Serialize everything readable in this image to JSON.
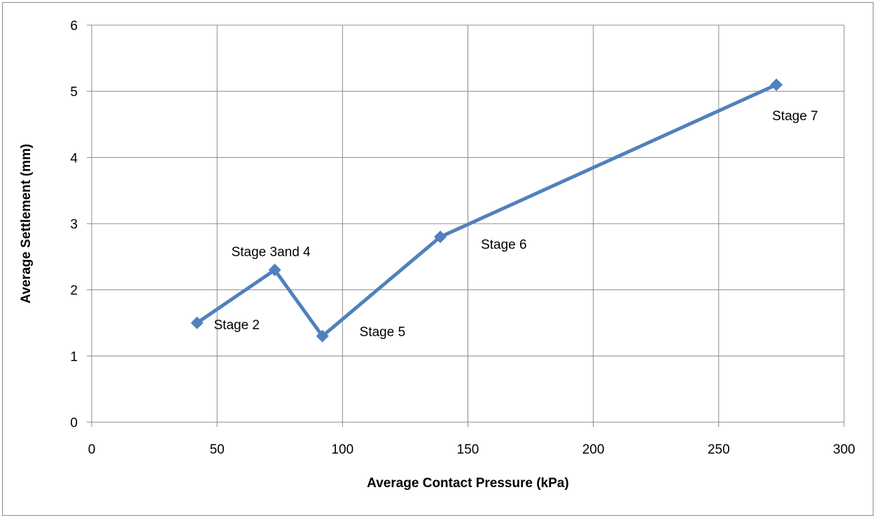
{
  "chart_data": {
    "type": "line",
    "title": "",
    "xlabel": "Average Contact Pressure (kPa)",
    "ylabel": "Average Settlement (mm)",
    "xlim": [
      0,
      300
    ],
    "ylim": [
      0,
      6
    ],
    "x_ticks": [
      "0",
      "50",
      "100",
      "150",
      "200",
      "250",
      "300"
    ],
    "y_ticks": [
      "0",
      "1",
      "2",
      "3",
      "4",
      "5",
      "6"
    ],
    "grid": true,
    "legend": "none",
    "series": [
      {
        "color": "#4F81BD",
        "marker": "diamond",
        "points": [
          {
            "x": 42,
            "y": 1.5,
            "label": "Stage 2"
          },
          {
            "x": 73,
            "y": 2.3,
            "label": "Stage 3and 4"
          },
          {
            "x": 92,
            "y": 1.3,
            "label": "Stage 5"
          },
          {
            "x": 139,
            "y": 2.8,
            "label": "Stage 6"
          },
          {
            "x": 273,
            "y": 5.1,
            "label": "Stage 7"
          }
        ]
      }
    ]
  }
}
